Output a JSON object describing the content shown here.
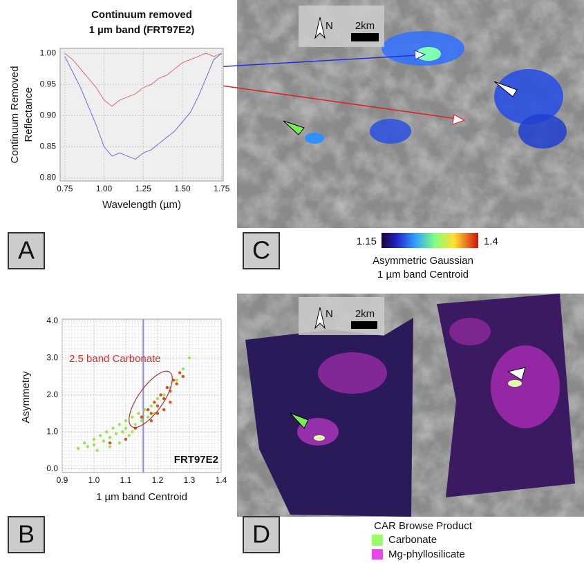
{
  "chart_data": [
    {
      "type": "line",
      "title": [
        "Continuum removed",
        "1 µm band (FRT97E2)"
      ],
      "y_label": [
        "Continuum Removed",
        "Reflectance"
      ],
      "x_label": "Wavelength (µm)",
      "x": [
        0.75,
        0.8,
        0.85,
        0.9,
        0.95,
        1.0,
        1.05,
        1.1,
        1.15,
        1.2,
        1.25,
        1.3,
        1.35,
        1.4,
        1.45,
        1.5,
        1.55,
        1.6,
        1.65,
        1.7,
        1.75
      ],
      "series": [
        {
          "color": "#e06a6a",
          "values": [
            1.0,
            0.99,
            0.975,
            0.96,
            0.945,
            0.925,
            0.915,
            0.925,
            0.93,
            0.935,
            0.945,
            0.95,
            0.96,
            0.965,
            0.975,
            0.985,
            0.99,
            0.995,
            1.0,
            0.995,
            1.0
          ]
        },
        {
          "color": "#6a6ae0",
          "values": [
            0.995,
            0.97,
            0.945,
            0.915,
            0.885,
            0.85,
            0.835,
            0.84,
            0.835,
            0.83,
            0.84,
            0.845,
            0.855,
            0.865,
            0.875,
            0.89,
            0.905,
            0.93,
            0.96,
            0.99,
            1.0
          ]
        }
      ],
      "xlim": [
        0.72,
        1.76
      ],
      "ylim": [
        0.795,
        1.008
      ],
      "xticks": [
        0.75,
        {
          "value": 1,
          "label": "1.00"
        },
        1.25,
        {
          "value": 1.5,
          "label": "1.50"
        },
        1.75
      ],
      "yticks": [
        {
          "value": 0.8,
          "label": "0.80"
        },
        0.85,
        {
          "value": 0.9,
          "label": "0.90"
        },
        0.95,
        {
          "value": 1,
          "label": "1.00"
        }
      ],
      "grid": true
    },
    {
      "type": "scatter",
      "x_label": "1 µm band Centroid",
      "y_label": "Asymmetry",
      "annotations": [
        "2.5 band Carbonate",
        "FRT97E2"
      ],
      "reference_x": 1.155,
      "series": [
        {
          "color": "#99e64d",
          "x": [
            0.95,
            0.97,
            0.98,
            1.0,
            1.0,
            1.02,
            1.03,
            1.04,
            1.05,
            1.06,
            1.07,
            1.08,
            1.09,
            1.1,
            1.1,
            1.11,
            1.12,
            1.13,
            1.14,
            1.15,
            1.16,
            1.17,
            1.18,
            1.19,
            1.2,
            1.22,
            1.24,
            1.26,
            1.28,
            1.3,
            1.01,
            1.05,
            1.12,
            1.08
          ],
          "values": [
            0.55,
            0.7,
            0.6,
            0.8,
            0.65,
            0.9,
            0.75,
            1.0,
            0.85,
            1.1,
            0.95,
            1.2,
            1.0,
            1.3,
            1.1,
            0.9,
            1.4,
            1.2,
            1.5,
            1.3,
            1.6,
            1.4,
            1.7,
            1.5,
            1.9,
            2.0,
            2.2,
            2.4,
            2.7,
            3.0,
            0.5,
            0.6,
            1.0,
            0.7
          ]
        },
        {
          "color": "#d9501e",
          "x": [
            1.15,
            1.17,
            1.18,
            1.19,
            1.2,
            1.21,
            1.22,
            1.23,
            1.24,
            1.25,
            1.26,
            1.27,
            1.2,
            1.22,
            1.18,
            1.1,
            1.05,
            1.13,
            1.24,
            1.28
          ],
          "values": [
            1.4,
            1.6,
            1.5,
            1.8,
            1.7,
            2.0,
            1.9,
            2.2,
            2.1,
            2.4,
            2.3,
            2.6,
            1.5,
            1.6,
            1.3,
            0.8,
            0.7,
            1.1,
            1.8,
            2.5
          ]
        }
      ],
      "xlim": [
        0.9,
        1.4
      ],
      "ylim": [
        -0.1,
        4.05
      ],
      "xticks": [
        0.9,
        {
          "value": 1,
          "label": "1.0"
        },
        1.1,
        1.2,
        1.3,
        1.4
      ],
      "yticks": [
        {
          "value": 0,
          "label": "0.0"
        },
        {
          "value": 1,
          "label": "1.0"
        },
        {
          "value": 2,
          "label": "2.0"
        },
        {
          "value": 3,
          "label": "3.0"
        },
        {
          "value": 4,
          "label": "4.0"
        }
      ],
      "grid": true
    }
  ],
  "panel_labels": [
    "A",
    "B",
    "C",
    "D"
  ],
  "scale_bars": [
    {
      "north": "N",
      "distance": "2km"
    },
    {
      "north": "N",
      "distance": "2km"
    }
  ],
  "colorbar": {
    "min": 1.15,
    "max": 1.4,
    "title": [
      "Asymmetric Gaussian",
      "1 µm band Centroid"
    ]
  },
  "legend": {
    "title": "CAR Browse Product",
    "items": [
      {
        "label": "Carbonate",
        "color": "#99ff66"
      },
      {
        "label": "Mg-phyllosilicate",
        "color": "#ee44ee"
      }
    ]
  }
}
